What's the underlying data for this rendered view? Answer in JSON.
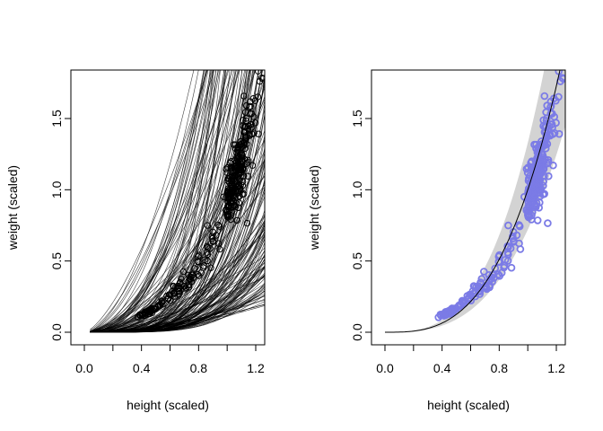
{
  "chart_data": [
    {
      "type": "line+scatter",
      "panel": "left",
      "xlabel": "height (scaled)",
      "ylabel": "weight (scaled)",
      "xlim": [
        -0.05,
        1.32
      ],
      "ylim": [
        -0.08,
        1.85
      ],
      "x_ticks": [
        "0.0",
        "0.4",
        "0.8",
        "1.2"
      ],
      "y_ticks": [
        "0.0",
        "0.5",
        "1.0",
        "1.5"
      ],
      "curves": {
        "form": "y = a * x^b",
        "x_range": [
          0.04,
          1.28
        ],
        "count": 180,
        "color": "#000000"
      },
      "points": {
        "marker": "open-circle",
        "color": "#000000",
        "count": 350
      }
    },
    {
      "type": "line+band+scatter",
      "panel": "right",
      "xlabel": "height (scaled)",
      "ylabel": "weight (scaled)",
      "xlim": [
        -0.05,
        1.32
      ],
      "ylim": [
        -0.08,
        1.85
      ],
      "x_ticks": [
        "0.0",
        "0.4",
        "0.8",
        "1.2"
      ],
      "y_ticks": [
        "0.0",
        "0.5",
        "1.0",
        "1.5"
      ],
      "mean_curve": {
        "form": "y = x^3",
        "x_range": [
          0.0,
          1.24
        ],
        "color": "#000000"
      },
      "band": {
        "color": "#d3d3d3",
        "lower_factor": 0.72,
        "upper_factor": 1.33
      },
      "points": {
        "marker": "open-circle",
        "color": "#7b7be6",
        "count": 350
      }
    }
  ]
}
